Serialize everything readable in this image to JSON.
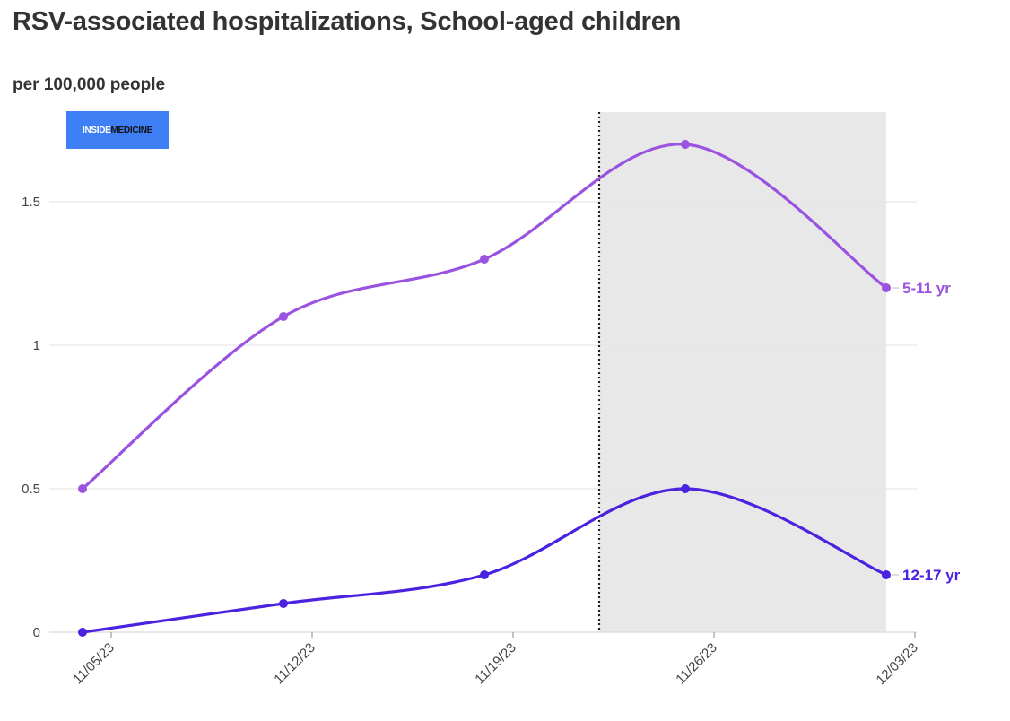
{
  "title": "RSV-associated hospitalizations, School-aged children",
  "subtitle": "per 100,000 people",
  "logo": {
    "part1": "INSIDE",
    "part2": "MEDICINE"
  },
  "chart_data": {
    "type": "line",
    "x": [
      "11/05/23",
      "11/12/23",
      "11/19/23",
      "11/26/23",
      "12/03/23"
    ],
    "x_ticks": [
      "11/05/23",
      "11/12/23",
      "11/19/23",
      "11/26/23",
      "12/03/23"
    ],
    "y_ticks": [
      "0",
      "0.5",
      "1",
      "1.5"
    ],
    "ylim": [
      0,
      1.75
    ],
    "grid": "horizontal",
    "shaded_region": {
      "from": "11/22/23",
      "to": "12/02/23",
      "color": "#e8e8e8"
    },
    "vertical_marker": {
      "at": "11/22/23",
      "style": "dotted"
    },
    "series": [
      {
        "name": "5-11 yr",
        "color": "#9a52e0",
        "points": [
          [
            "11/04/23",
            0.5
          ],
          [
            "11/11/23",
            1.1
          ],
          [
            "11/18/23",
            1.3
          ],
          [
            "11/25/23",
            1.7
          ],
          [
            "12/02/23",
            1.2
          ]
        ]
      },
      {
        "name": "12-17 yr",
        "color": "#4a22e0",
        "points": [
          [
            "11/04/23",
            0.0
          ],
          [
            "11/11/23",
            0.1
          ],
          [
            "11/18/23",
            0.2
          ],
          [
            "11/25/23",
            0.5
          ],
          [
            "12/02/23",
            0.2
          ]
        ]
      }
    ]
  }
}
